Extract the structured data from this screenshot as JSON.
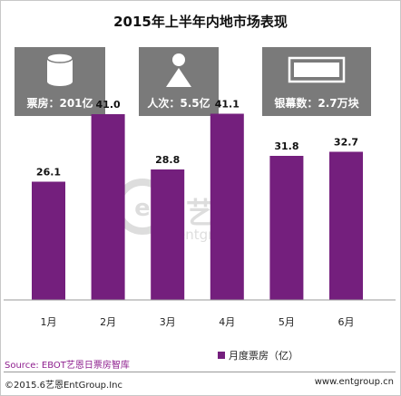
{
  "chart_data": {
    "type": "bar",
    "title": "2015年上半年内地市场表现",
    "categories": [
      "1月",
      "2月",
      "3月",
      "4月",
      "5月",
      "6月"
    ],
    "series": [
      {
        "name": "月度票房（亿）",
        "values": [
          26.1,
          41.0,
          28.8,
          41.1,
          31.8,
          32.7
        ],
        "color": "#741f7d"
      }
    ],
    "data_labels": [
      "26.1",
      "41.0",
      "28.8",
      "41.1",
      "31.8",
      "32.7"
    ],
    "ylim": [
      0,
      50
    ],
    "grid": false,
    "legend": "bottom-right"
  },
  "stats": [
    {
      "label": "票房：201亿",
      "icon": "cylinder-icon"
    },
    {
      "label": "人次：5.5亿",
      "icon": "person-icon"
    },
    {
      "label": "银幕数：2.7万块",
      "icon": "screen-icon"
    }
  ],
  "watermark": {
    "brand": "艺恩",
    "sub": "entgroup"
  },
  "source": "Source: EBOT艺恩日票房智库",
  "footer": {
    "left": "©2015.6艺恩EntGroup.Inc",
    "right": "www.entgroup.cn"
  },
  "colors": {
    "bar": "#741f7d",
    "card": "#7a7a7a",
    "source_text": "#8e1f8e"
  }
}
